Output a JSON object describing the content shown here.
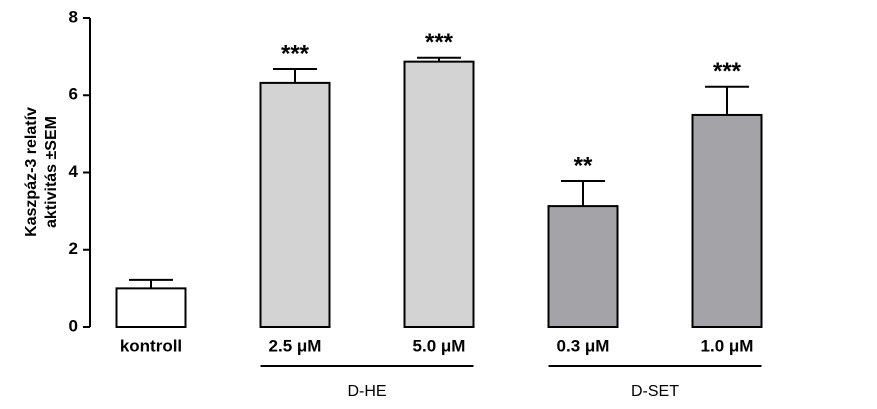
{
  "chart_data": {
    "type": "bar",
    "y_label_lines": [
      "Kaszpáz-3 relatív",
      "aktivitás  ±SEM"
    ],
    "categories": [
      "kontroll",
      "2.5 μM",
      "5.0 μM",
      "0.3 μM",
      "1.0 μM"
    ],
    "values": [
      1.0,
      6.32,
      6.87,
      3.13,
      5.49
    ],
    "errors": [
      0.22,
      0.36,
      0.1,
      0.65,
      0.73
    ],
    "colors": [
      "#ffffff",
      "#d3d3d3",
      "#d3d3d3",
      "#a4a4a8",
      "#a4a4a8"
    ],
    "significance": [
      null,
      "***",
      "***",
      "**",
      "***"
    ],
    "groups": [
      {
        "label": "D-HE",
        "members": [
          1,
          2
        ]
      },
      {
        "label": "D-SET",
        "members": [
          3,
          4
        ]
      }
    ],
    "ylim": [
      0,
      8
    ],
    "yticks": [
      0,
      2,
      4,
      6,
      8
    ]
  }
}
